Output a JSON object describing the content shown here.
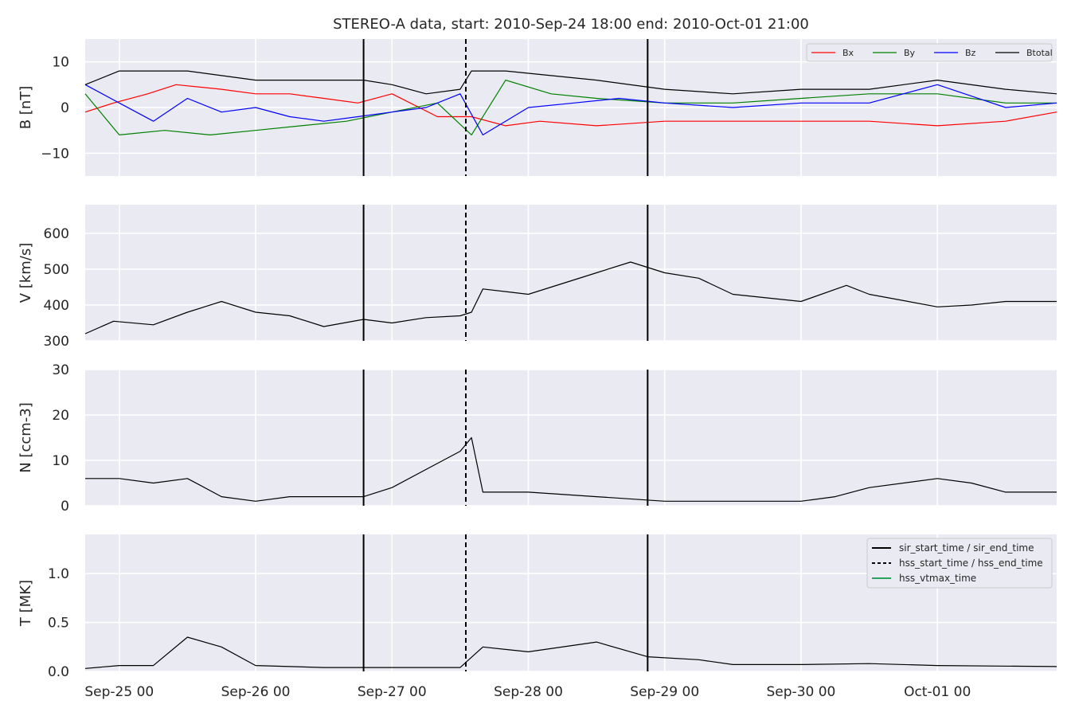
{
  "chart_data": {
    "type": "line",
    "title": "STEREO-A data, start: 2010-Sep-24 18:00  end: 2010-Oct-01 21:00",
    "start": "2010-09-24 18:00",
    "end": "2010-10-01 21:00",
    "x_ticks": [
      "Sep-25 00",
      "Sep-26 00",
      "Sep-27 00",
      "Sep-28 00",
      "Sep-29 00",
      "Sep-30 00",
      "Oct-01 00"
    ],
    "grid": true,
    "event_lines": [
      {
        "name": "sir_start_time / sir_end_time",
        "style": "solid",
        "color": "#000000",
        "times": [
          "2010-09-26 19:00",
          "2010-09-28 21:00"
        ]
      },
      {
        "name": "hss_start_time / hss_end_time",
        "style": "dashed",
        "color": "#000000",
        "times": [
          "2010-09-27 13:00"
        ]
      },
      {
        "name": "hss_vtmax_time",
        "style": "solid",
        "color": "#2ca25f",
        "times": []
      }
    ],
    "panels": [
      {
        "ylabel": "B [nT]",
        "ylim": [
          -15,
          15
        ],
        "yticks": [
          -10,
          0,
          10
        ],
        "yticklabels": [
          "−10",
          "0",
          "10"
        ],
        "legend": "top-right",
        "series": [
          {
            "name": "Bx",
            "color": "#ff0000",
            "points": [
              [
                "2010-09-24 18:00",
                -1
              ],
              [
                "2010-09-24 23:00",
                1
              ],
              [
                "2010-09-25 05:00",
                3
              ],
              [
                "2010-09-25 10:00",
                5
              ],
              [
                "2010-09-25 18:00",
                4
              ],
              [
                "2010-09-26 00:00",
                3
              ],
              [
                "2010-09-26 06:00",
                3
              ],
              [
                "2010-09-26 12:00",
                2
              ],
              [
                "2010-09-26 18:00",
                1
              ],
              [
                "2010-09-27 00:00",
                3
              ],
              [
                "2010-09-27 08:00",
                -2
              ],
              [
                "2010-09-27 14:00",
                -2
              ],
              [
                "2010-09-27 20:00",
                -4
              ],
              [
                "2010-09-28 02:00",
                -3
              ],
              [
                "2010-09-28 12:00",
                -4
              ],
              [
                "2010-09-29 00:00",
                -3
              ],
              [
                "2010-09-29 12:00",
                -3
              ],
              [
                "2010-09-30 00:00",
                -3
              ],
              [
                "2010-09-30 12:00",
                -3
              ],
              [
                "2010-10-01 00:00",
                -4
              ],
              [
                "2010-10-01 12:00",
                -3
              ],
              [
                "2010-10-01 21:00",
                -1
              ]
            ]
          },
          {
            "name": "By",
            "color": "#008000",
            "points": [
              [
                "2010-09-24 18:00",
                3
              ],
              [
                "2010-09-25 00:00",
                -6
              ],
              [
                "2010-09-25 08:00",
                -5
              ],
              [
                "2010-09-25 16:00",
                -6
              ],
              [
                "2010-09-26 00:00",
                -5
              ],
              [
                "2010-09-26 08:00",
                -4
              ],
              [
                "2010-09-26 16:00",
                -3
              ],
              [
                "2010-09-27 00:00",
                -1
              ],
              [
                "2010-09-27 08:00",
                1
              ],
              [
                "2010-09-27 14:00",
                -6
              ],
              [
                "2010-09-27 20:00",
                6
              ],
              [
                "2010-09-28 04:00",
                3
              ],
              [
                "2010-09-28 12:00",
                2
              ],
              [
                "2010-09-29 00:00",
                1
              ],
              [
                "2010-09-29 12:00",
                1
              ],
              [
                "2010-09-30 00:00",
                2
              ],
              [
                "2010-09-30 12:00",
                3
              ],
              [
                "2010-10-01 00:00",
                3
              ],
              [
                "2010-10-01 12:00",
                1
              ],
              [
                "2010-10-01 21:00",
                1
              ]
            ]
          },
          {
            "name": "Bz",
            "color": "#0000ff",
            "points": [
              [
                "2010-09-24 18:00",
                5
              ],
              [
                "2010-09-25 00:00",
                1
              ],
              [
                "2010-09-25 06:00",
                -3
              ],
              [
                "2010-09-25 12:00",
                2
              ],
              [
                "2010-09-25 18:00",
                -1
              ],
              [
                "2010-09-26 00:00",
                0
              ],
              [
                "2010-09-26 06:00",
                -2
              ],
              [
                "2010-09-26 12:00",
                -3
              ],
              [
                "2010-09-26 18:00",
                -2
              ],
              [
                "2010-09-27 00:00",
                -1
              ],
              [
                "2010-09-27 06:00",
                0
              ],
              [
                "2010-09-27 12:00",
                3
              ],
              [
                "2010-09-27 16:00",
                -6
              ],
              [
                "2010-09-28 00:00",
                0
              ],
              [
                "2010-09-28 08:00",
                1
              ],
              [
                "2010-09-28 16:00",
                2
              ],
              [
                "2010-09-29 00:00",
                1
              ],
              [
                "2010-09-29 12:00",
                0
              ],
              [
                "2010-09-30 00:00",
                1
              ],
              [
                "2010-09-30 12:00",
                1
              ],
              [
                "2010-10-01 00:00",
                5
              ],
              [
                "2010-10-01 12:00",
                0
              ],
              [
                "2010-10-01 21:00",
                1
              ]
            ]
          },
          {
            "name": "Btotal",
            "color": "#000000",
            "points": [
              [
                "2010-09-24 18:00",
                5
              ],
              [
                "2010-09-25 00:00",
                8
              ],
              [
                "2010-09-25 12:00",
                8
              ],
              [
                "2010-09-25 18:00",
                7
              ],
              [
                "2010-09-26 00:00",
                6
              ],
              [
                "2010-09-26 12:00",
                6
              ],
              [
                "2010-09-26 19:00",
                6
              ],
              [
                "2010-09-27 00:00",
                5
              ],
              [
                "2010-09-27 06:00",
                3
              ],
              [
                "2010-09-27 12:00",
                4
              ],
              [
                "2010-09-27 14:00",
                8
              ],
              [
                "2010-09-27 20:00",
                8
              ],
              [
                "2010-09-28 04:00",
                7
              ],
              [
                "2010-09-28 12:00",
                6
              ],
              [
                "2010-09-29 00:00",
                4
              ],
              [
                "2010-09-29 12:00",
                3
              ],
              [
                "2010-09-30 00:00",
                4
              ],
              [
                "2010-09-30 12:00",
                4
              ],
              [
                "2010-10-01 00:00",
                6
              ],
              [
                "2010-10-01 12:00",
                4
              ],
              [
                "2010-10-01 21:00",
                3
              ]
            ]
          }
        ]
      },
      {
        "ylabel": "V [km/s]",
        "ylim": [
          300,
          680
        ],
        "yticks": [
          300,
          400,
          500,
          600
        ],
        "yticklabels": [
          "300",
          "400",
          "500",
          "600"
        ],
        "series": [
          {
            "name": "V",
            "color": "#000000",
            "points": [
              [
                "2010-09-24 18:00",
                320
              ],
              [
                "2010-09-24 23:00",
                355
              ],
              [
                "2010-09-25 06:00",
                345
              ],
              [
                "2010-09-25 12:00",
                380
              ],
              [
                "2010-09-25 18:00",
                410
              ],
              [
                "2010-09-26 00:00",
                380
              ],
              [
                "2010-09-26 06:00",
                370
              ],
              [
                "2010-09-26 12:00",
                340
              ],
              [
                "2010-09-26 19:00",
                360
              ],
              [
                "2010-09-27 00:00",
                350
              ],
              [
                "2010-09-27 06:00",
                365
              ],
              [
                "2010-09-27 12:00",
                370
              ],
              [
                "2010-09-27 14:00",
                380
              ],
              [
                "2010-09-27 16:00",
                445
              ],
              [
                "2010-09-28 00:00",
                430
              ],
              [
                "2010-09-28 06:00",
                460
              ],
              [
                "2010-09-28 12:00",
                490
              ],
              [
                "2010-09-28 18:00",
                520
              ],
              [
                "2010-09-29 00:00",
                490
              ],
              [
                "2010-09-29 06:00",
                475
              ],
              [
                "2010-09-29 12:00",
                430
              ],
              [
                "2010-09-30 00:00",
                410
              ],
              [
                "2010-09-30 08:00",
                455
              ],
              [
                "2010-09-30 12:00",
                430
              ],
              [
                "2010-10-01 00:00",
                395
              ],
              [
                "2010-10-01 06:00",
                400
              ],
              [
                "2010-10-01 12:00",
                410
              ],
              [
                "2010-10-01 21:00",
                410
              ]
            ]
          }
        ]
      },
      {
        "ylabel": "N [ccm-3]",
        "ylim": [
          0,
          30
        ],
        "yticks": [
          0,
          10,
          20,
          30
        ],
        "yticklabels": [
          "0",
          "10",
          "20",
          "30"
        ],
        "series": [
          {
            "name": "N",
            "color": "#000000",
            "points": [
              [
                "2010-09-24 18:00",
                6
              ],
              [
                "2010-09-25 00:00",
                6
              ],
              [
                "2010-09-25 06:00",
                5
              ],
              [
                "2010-09-25 12:00",
                6
              ],
              [
                "2010-09-25 18:00",
                2
              ],
              [
                "2010-09-26 00:00",
                1
              ],
              [
                "2010-09-26 06:00",
                2
              ],
              [
                "2010-09-26 12:00",
                2
              ],
              [
                "2010-09-26 19:00",
                2
              ],
              [
                "2010-09-27 00:00",
                4
              ],
              [
                "2010-09-27 06:00",
                8
              ],
              [
                "2010-09-27 12:00",
                12
              ],
              [
                "2010-09-27 14:00",
                15
              ],
              [
                "2010-09-27 16:00",
                3
              ],
              [
                "2010-09-28 00:00",
                3
              ],
              [
                "2010-09-28 12:00",
                2
              ],
              [
                "2010-09-29 00:00",
                1
              ],
              [
                "2010-09-29 12:00",
                1
              ],
              [
                "2010-09-30 00:00",
                1
              ],
              [
                "2010-09-30 06:00",
                2
              ],
              [
                "2010-09-30 12:00",
                4
              ],
              [
                "2010-10-01 00:00",
                6
              ],
              [
                "2010-10-01 06:00",
                5
              ],
              [
                "2010-10-01 12:00",
                3
              ],
              [
                "2010-10-01 21:00",
                3
              ]
            ]
          }
        ]
      },
      {
        "ylabel": "T [MK]",
        "ylim": [
          0,
          1.4
        ],
        "yticks": [
          0.0,
          0.5,
          1.0
        ],
        "yticklabels": [
          "0.0",
          "0.5",
          "1.0"
        ],
        "legend": "top-right",
        "series": [
          {
            "name": "T",
            "color": "#000000",
            "points": [
              [
                "2010-09-24 18:00",
                0.03
              ],
              [
                "2010-09-25 00:00",
                0.06
              ],
              [
                "2010-09-25 06:00",
                0.06
              ],
              [
                "2010-09-25 12:00",
                0.35
              ],
              [
                "2010-09-25 18:00",
                0.25
              ],
              [
                "2010-09-26 00:00",
                0.06
              ],
              [
                "2010-09-26 12:00",
                0.04
              ],
              [
                "2010-09-26 19:00",
                0.04
              ],
              [
                "2010-09-27 00:00",
                0.04
              ],
              [
                "2010-09-27 12:00",
                0.04
              ],
              [
                "2010-09-27 16:00",
                0.25
              ],
              [
                "2010-09-28 00:00",
                0.2
              ],
              [
                "2010-09-28 12:00",
                0.3
              ],
              [
                "2010-09-28 21:00",
                0.15
              ],
              [
                "2010-09-29 06:00",
                0.12
              ],
              [
                "2010-09-29 12:00",
                0.07
              ],
              [
                "2010-09-30 00:00",
                0.07
              ],
              [
                "2010-09-30 12:00",
                0.08
              ],
              [
                "2010-10-01 00:00",
                0.06
              ],
              [
                "2010-10-01 21:00",
                0.05
              ]
            ]
          }
        ]
      }
    ]
  }
}
